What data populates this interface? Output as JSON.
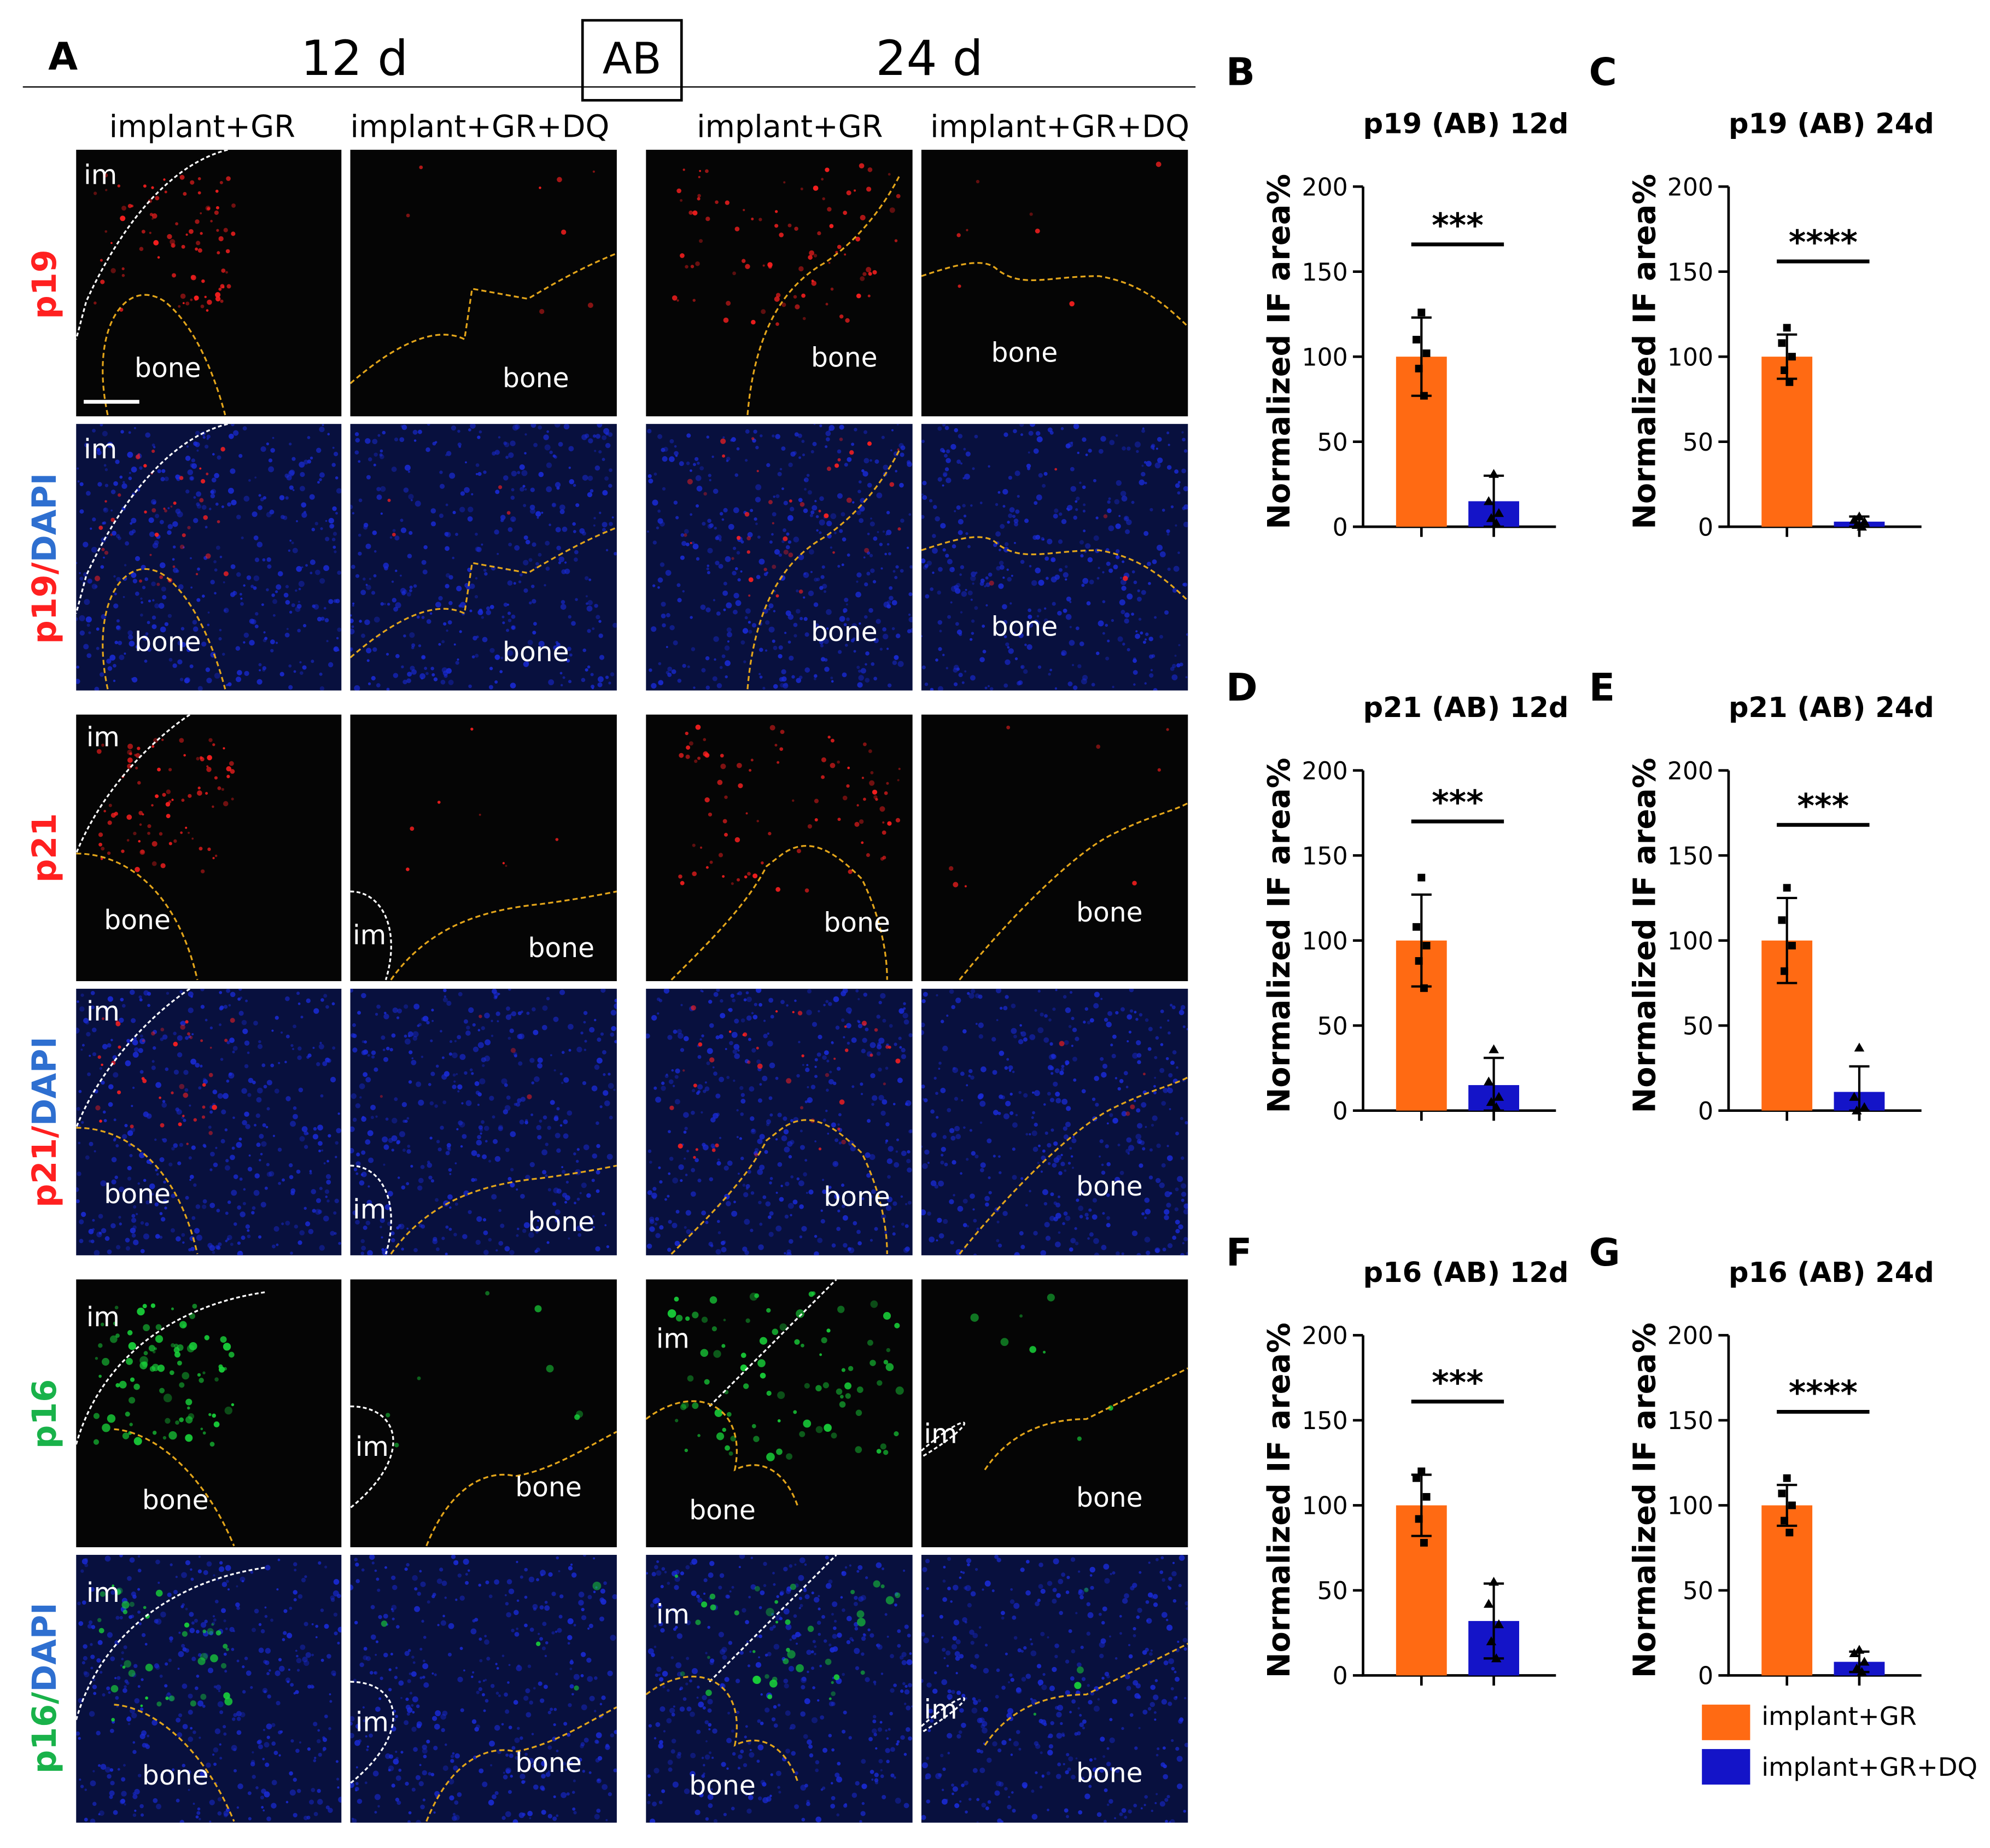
{
  "panels": {
    "A": "A",
    "B": "B",
    "C": "C",
    "D": "D",
    "E": "E",
    "F": "F",
    "G": "G"
  },
  "panel_a": {
    "time_left": "12 d",
    "time_right": "24 d",
    "group_box": "AB",
    "columns": [
      "implant+GR",
      "implant+GR+DQ",
      "implant+GR",
      "implant+GR+DQ"
    ],
    "rows": [
      {
        "pre": "p19",
        "pre_color": "#ff2020",
        "post": ""
      },
      {
        "pre": "p19",
        "pre_color": "#ff2020",
        "sep": "/",
        "post": "DAPI",
        "post_color": "#2e6fd0"
      },
      {
        "pre": "p21",
        "pre_color": "#ff2020",
        "post": ""
      },
      {
        "pre": "p21",
        "pre_color": "#ff2020",
        "sep": "/",
        "post": "DAPI",
        "post_color": "#2e6fd0"
      },
      {
        "pre": "p16",
        "pre_color": "#19b24a",
        "post": ""
      },
      {
        "pre": "p16",
        "pre_color": "#19b24a",
        "sep": "/",
        "post": "DAPI",
        "post_color": "#2e6fd0"
      }
    ],
    "region_labels": {
      "implant": "im",
      "bone": "bone"
    }
  },
  "colors": {
    "implant_gr": "#ff6a13",
    "implant_gr_dq": "#1414c8",
    "p19_p21_signal": "#ff2020",
    "p16_signal": "#19d23a",
    "dapi": "#1a2bd8"
  },
  "legend": {
    "items": [
      {
        "label": "implant+GR",
        "color": "#ff6a13"
      },
      {
        "label": "implant+GR+DQ",
        "color": "#1414c8"
      }
    ]
  },
  "chart_data": [
    {
      "id": "B",
      "type": "bar",
      "title": "p19 (AB) 12d",
      "xlabel": "",
      "ylabel": "Normalized IF area%",
      "ylim": [
        0,
        200
      ],
      "yticks": [
        0,
        50,
        100,
        150,
        200
      ],
      "categories": [
        "implant+GR",
        "implant+GR+DQ"
      ],
      "values": [
        100,
        15
      ],
      "errors": [
        23,
        15
      ],
      "points": [
        [
          126,
          110,
          102,
          93,
          77
        ],
        [
          31,
          15,
          8,
          5,
          2
        ]
      ],
      "significance": "***"
    },
    {
      "id": "C",
      "type": "bar",
      "title": "p19 (AB) 24d",
      "xlabel": "",
      "ylabel": "Normalized IF area%",
      "ylim": [
        0,
        200
      ],
      "yticks": [
        0,
        50,
        100,
        150,
        200
      ],
      "categories": [
        "implant+GR",
        "implant+GR+DQ"
      ],
      "values": [
        100,
        3
      ],
      "errors": [
        13,
        3
      ],
      "points": [
        [
          117,
          108,
          100,
          92,
          85
        ],
        [
          6,
          4,
          3,
          1,
          0
        ]
      ],
      "significance": "****"
    },
    {
      "id": "D",
      "type": "bar",
      "title": "p21 (AB)  12d",
      "xlabel": "",
      "ylabel": "Normalized IF area%",
      "ylim": [
        0,
        200
      ],
      "yticks": [
        0,
        50,
        100,
        150,
        200
      ],
      "categories": [
        "implant+GR",
        "implant+GR+DQ"
      ],
      "values": [
        100,
        15
      ],
      "errors": [
        27,
        16
      ],
      "points": [
        [
          137,
          108,
          97,
          88,
          72
        ],
        [
          36,
          17,
          8,
          5,
          2
        ]
      ],
      "significance": "***"
    },
    {
      "id": "E",
      "type": "bar",
      "title": "p21 (AB)  24d",
      "xlabel": "",
      "ylabel": "Normalized IF area%",
      "ylim": [
        0,
        200
      ],
      "yticks": [
        0,
        50,
        100,
        150,
        200
      ],
      "categories": [
        "implant+GR",
        "implant+GR+DQ"
      ],
      "values": [
        100,
        11
      ],
      "errors": [
        25,
        15
      ],
      "points": [
        [
          131,
          112,
          97,
          82
        ],
        [
          37,
          8,
          2,
          0
        ]
      ],
      "significance": "***"
    },
    {
      "id": "F",
      "type": "bar",
      "title": "p16 (AB)  12d",
      "xlabel": "",
      "ylabel": "Normalized IF area%",
      "ylim": [
        0,
        200
      ],
      "yticks": [
        0,
        50,
        100,
        150,
        200
      ],
      "categories": [
        "implant+GR",
        "implant+GR+DQ"
      ],
      "values": [
        100,
        32
      ],
      "errors": [
        18,
        22
      ],
      "points": [
        [
          120,
          116,
          105,
          92,
          78
        ],
        [
          55,
          42,
          30,
          20,
          10
        ]
      ],
      "significance": "***"
    },
    {
      "id": "G",
      "type": "bar",
      "title": "p16 (AB)  24d",
      "xlabel": "",
      "ylabel": "Normalized IF area%",
      "ylim": [
        0,
        200
      ],
      "yticks": [
        0,
        50,
        100,
        150,
        200
      ],
      "categories": [
        "implant+GR",
        "implant+GR+DQ"
      ],
      "values": [
        100,
        8
      ],
      "errors": [
        12,
        6
      ],
      "points": [
        [
          116,
          107,
          100,
          91,
          84
        ],
        [
          15,
          13,
          8,
          4,
          2
        ]
      ],
      "significance": "****"
    }
  ]
}
